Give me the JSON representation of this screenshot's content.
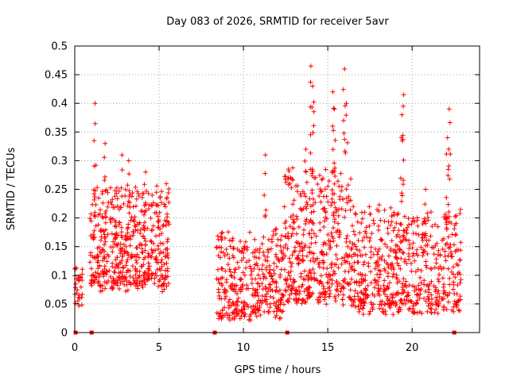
{
  "chart_data": {
    "type": "scatter",
    "title": "Day 083 of 2026, SRMTID for receiver 5avr",
    "xlabel": "GPS time / hours",
    "ylabel": "SRMTID / TECUs",
    "xlim": [
      0,
      24
    ],
    "ylim": [
      0,
      0.5
    ],
    "xticks": [
      0,
      5,
      10,
      15,
      20
    ],
    "yticks": [
      0,
      0.05,
      0.1,
      0.15,
      0.2,
      0.25,
      0.3,
      0.35,
      0.4,
      0.45,
      0.5
    ],
    "grid": true,
    "marker": "+",
    "color": "#ff0000",
    "zero_markers_x": [
      0.05,
      1.0,
      8.3,
      12.6,
      22.5
    ],
    "series": [
      {
        "name": "SRMTID",
        "segments": [
          {
            "t0": 0.0,
            "t1": 0.45,
            "n": 28,
            "base": 0.07,
            "spread": 0.04
          },
          {
            "t0": 0.9,
            "t1": 5.6,
            "n": 520,
            "base": 0.13,
            "spread": 0.11
          },
          {
            "t0": 8.4,
            "t1": 12.4,
            "n": 360,
            "base": 0.07,
            "spread": 0.09
          },
          {
            "t0": 12.4,
            "t1": 16.4,
            "n": 420,
            "base": 0.12,
            "spread": 0.14
          },
          {
            "t0": 16.4,
            "t1": 22.9,
            "n": 600,
            "base": 0.09,
            "spread": 0.11
          }
        ],
        "peaks": [
          {
            "x": 1.2,
            "y": 0.4
          },
          {
            "x": 1.8,
            "y": 0.33
          },
          {
            "x": 2.8,
            "y": 0.31
          },
          {
            "x": 3.2,
            "y": 0.3
          },
          {
            "x": 4.2,
            "y": 0.28
          },
          {
            "x": 11.3,
            "y": 0.31
          },
          {
            "x": 13.7,
            "y": 0.32
          },
          {
            "x": 14.0,
            "y": 0.465
          },
          {
            "x": 14.1,
            "y": 0.43
          },
          {
            "x": 15.3,
            "y": 0.42
          },
          {
            "x": 15.4,
            "y": 0.39
          },
          {
            "x": 16.0,
            "y": 0.46
          },
          {
            "x": 16.1,
            "y": 0.4
          },
          {
            "x": 19.5,
            "y": 0.415
          },
          {
            "x": 19.4,
            "y": 0.38
          },
          {
            "x": 22.2,
            "y": 0.39
          },
          {
            "x": 22.1,
            "y": 0.34
          },
          {
            "x": 20.8,
            "y": 0.25
          }
        ]
      }
    ]
  }
}
